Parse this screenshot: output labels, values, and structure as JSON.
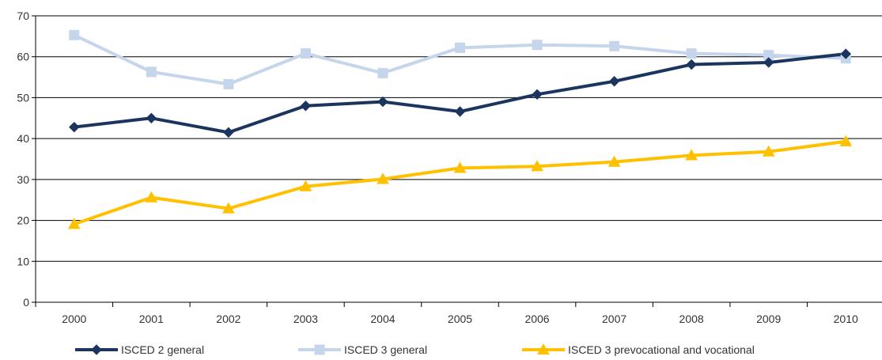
{
  "chart_data": {
    "type": "line",
    "title": "",
    "xlabel": "",
    "ylabel": "",
    "categories": [
      "2000",
      "2001",
      "2002",
      "2003",
      "2004",
      "2005",
      "2006",
      "2007",
      "2008",
      "2009",
      "2010"
    ],
    "ylim": [
      0,
      70
    ],
    "yticks": [
      0,
      10,
      20,
      30,
      40,
      50,
      60,
      70
    ],
    "grid": "horizontal",
    "legend_position": "bottom",
    "series": [
      {
        "name": "ISCED 2 general",
        "color": "#1c355e",
        "marker": "diamond",
        "values": [
          42.8,
          45.0,
          41.5,
          48.0,
          49.0,
          46.6,
          50.8,
          54.0,
          58.1,
          58.6,
          60.7
        ]
      },
      {
        "name": "ISCED 3 general",
        "color": "#c5d5ec",
        "marker": "square",
        "values": [
          65.3,
          56.3,
          53.3,
          60.8,
          56.0,
          62.2,
          62.9,
          62.6,
          60.8,
          60.4,
          59.6
        ]
      },
      {
        "name": "ISCED 3 prevocational and vocational",
        "color": "#ffc000",
        "marker": "triangle",
        "values": [
          19.1,
          25.6,
          22.9,
          28.3,
          30.1,
          32.8,
          33.2,
          34.3,
          35.9,
          36.8,
          39.3
        ]
      }
    ]
  }
}
